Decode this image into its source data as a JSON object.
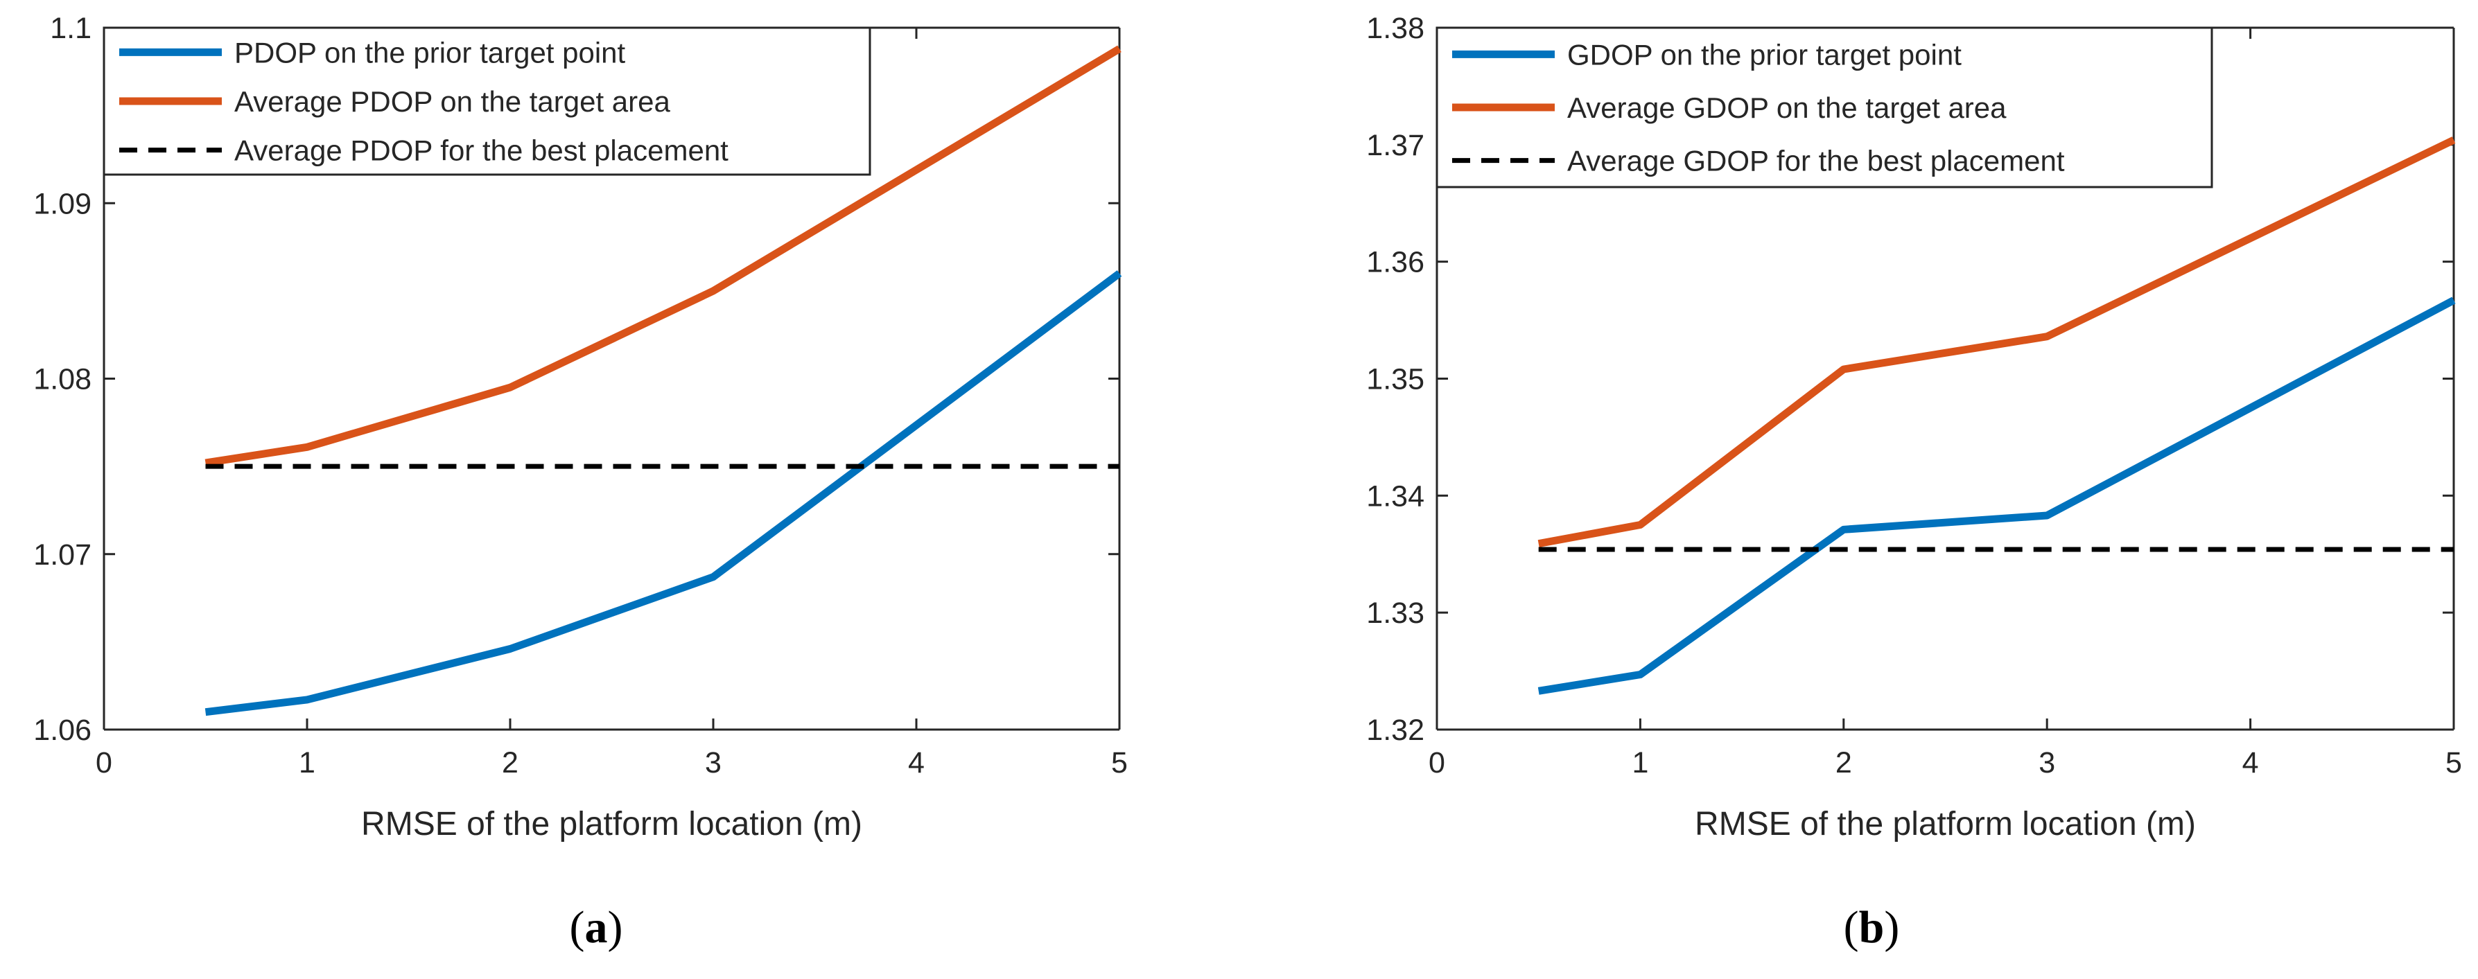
{
  "chart_data": [
    {
      "id": "a",
      "type": "line",
      "caption": {
        "open": "(",
        "letter": "a",
        "close": ")"
      },
      "xlabel": "RMSE of the platform location (m)",
      "ylabel": "",
      "xlim": [
        0,
        5
      ],
      "ylim": [
        1.06,
        1.1
      ],
      "xticks": [
        0,
        1,
        2,
        3,
        4,
        5
      ],
      "xtick_labels": [
        "0",
        "1",
        "2",
        "3",
        "4",
        "5"
      ],
      "yticks": [
        1.06,
        1.07,
        1.08,
        1.09,
        1.1
      ],
      "ytick_labels": [
        "1.06",
        "1.07",
        "1.08",
        "1.09",
        "1.1"
      ],
      "grid": false,
      "legend_position": "top-right",
      "series": [
        {
          "name": "PDOP on the prior target point",
          "color": "#0072BD",
          "style": "solid",
          "x": [
            0.5,
            1,
            2,
            3,
            5
          ],
          "y": [
            1.061,
            1.0617,
            1.0646,
            1.0687,
            1.086
          ]
        },
        {
          "name": "Average PDOP on the target area",
          "color": "#D95319",
          "style": "solid",
          "x": [
            0.5,
            1,
            2,
            3,
            5
          ],
          "y": [
            1.0752,
            1.0761,
            1.0795,
            1.085,
            1.0988
          ]
        },
        {
          "name": "Average PDOP for the best placement",
          "color": "#000000",
          "style": "dashed",
          "x": [
            0.5,
            5
          ],
          "y": [
            1.075,
            1.075
          ]
        }
      ]
    },
    {
      "id": "b",
      "type": "line",
      "caption": {
        "open": "(",
        "letter": "b",
        "close": ")"
      },
      "xlabel": "RMSE of the platform location (m)",
      "ylabel": "",
      "xlim": [
        0,
        5
      ],
      "ylim": [
        1.32,
        1.38
      ],
      "xticks": [
        0,
        1,
        2,
        3,
        4,
        5
      ],
      "xtick_labels": [
        "0",
        "1",
        "2",
        "3",
        "4",
        "5"
      ],
      "yticks": [
        1.32,
        1.33,
        1.34,
        1.35,
        1.36,
        1.37,
        1.38
      ],
      "ytick_labels": [
        "1.32",
        "1.33",
        "1.34",
        "1.35",
        "1.36",
        "1.37",
        "1.38"
      ],
      "grid": false,
      "legend_position": "top-left",
      "series": [
        {
          "name": "GDOP on the prior target point",
          "color": "#0072BD",
          "style": "solid",
          "x": [
            0.5,
            1,
            2,
            3,
            5
          ],
          "y": [
            1.3233,
            1.3247,
            1.3371,
            1.3383,
            1.3567
          ]
        },
        {
          "name": "Average GDOP on the target area",
          "color": "#D95319",
          "style": "solid",
          "x": [
            0.5,
            1,
            2,
            3,
            5
          ],
          "y": [
            1.3359,
            1.3375,
            1.3508,
            1.3536,
            1.3704
          ]
        },
        {
          "name": "Average GDOP for the best placement",
          "color": "#000000",
          "style": "dashed",
          "x": [
            0.5,
            5
          ],
          "y": [
            1.3354,
            1.3354
          ]
        }
      ]
    }
  ]
}
